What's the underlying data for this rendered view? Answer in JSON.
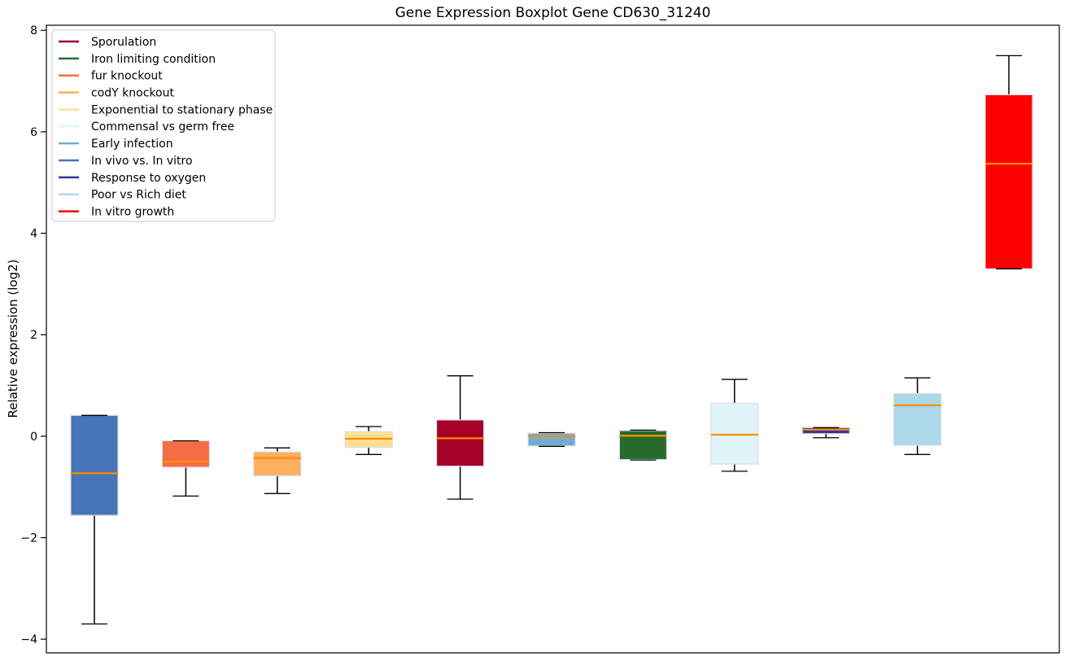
{
  "chart_data": {
    "type": "boxplot",
    "title": "Gene Expression Boxplot Gene CD630_31240",
    "ylabel": "Relative expression (log2)",
    "xlabel": "",
    "ylim": [
      -4.27,
      8.1
    ],
    "grid": false,
    "yticks": [
      {
        "label": "8",
        "value": 8
      },
      {
        "label": "6",
        "value": 6
      },
      {
        "label": "4",
        "value": 4
      },
      {
        "label": "2",
        "value": 2
      },
      {
        "label": "0",
        "value": 0
      },
      {
        "label": "−2",
        "value": -2
      },
      {
        "label": "−4",
        "value": -4
      }
    ],
    "colors": {
      "median": "#ff8c00",
      "whisker": "#000000",
      "box_edge": "#dcdce6",
      "spine": "#000000",
      "legend_border": "#cccccc",
      "legend_background": "#ffffff"
    },
    "legend_position": "upper-left",
    "legend": [
      {
        "label": "Sporulation",
        "color": "#a50026"
      },
      {
        "label": "Iron limiting condition",
        "color": "#266b2a"
      },
      {
        "label": "fur knockout",
        "color": "#f46d43"
      },
      {
        "label": "codY knockout",
        "color": "#fdae61"
      },
      {
        "label": "Exponential to stationary phase",
        "color": "#fee090"
      },
      {
        "label": "Commensal vs germ free",
        "color": "#e0f3f8"
      },
      {
        "label": "Early infection",
        "color": "#74add1"
      },
      {
        "label": "In vivo vs. In vitro",
        "color": "#4575b4"
      },
      {
        "label": "Response to oxygen",
        "color": "#313695"
      },
      {
        "label": "Poor vs Rich diet",
        "color": "#abd9e9"
      },
      {
        "label": "In vitro growth",
        "color": "#ff0000"
      }
    ],
    "boxes": [
      {
        "label": "In vivo vs. In vitro",
        "color": "#4575b4",
        "whislo": -3.7,
        "q1": -1.56,
        "med": -0.73,
        "q3": 0.41,
        "whishi": 0.41
      },
      {
        "label": "fur knockout",
        "color": "#f46d43",
        "whislo": -1.18,
        "q1": -0.61,
        "med": -0.5,
        "q3": -0.09,
        "whishi": -0.09
      },
      {
        "label": "codY knockout",
        "color": "#fdae61",
        "whislo": -1.13,
        "q1": -0.78,
        "med": -0.43,
        "q3": -0.31,
        "whishi": -0.23
      },
      {
        "label": "Exponential to stationary phase",
        "color": "#fee090",
        "whislo": -0.36,
        "q1": -0.22,
        "med": -0.05,
        "q3": 0.09,
        "whishi": 0.19
      },
      {
        "label": "Sporulation",
        "color": "#a50026",
        "whislo": -1.24,
        "q1": -0.59,
        "med": -0.04,
        "q3": 0.32,
        "whishi": 1.19
      },
      {
        "label": "Early infection",
        "color": "#74add1",
        "whislo": -0.2,
        "q1": -0.19,
        "med": 0.0,
        "q3": 0.06,
        "whishi": 0.07
      },
      {
        "label": "Iron limiting condition",
        "color": "#266b2a",
        "whislo": -0.47,
        "q1": -0.46,
        "med": 0.01,
        "q3": 0.11,
        "whishi": 0.12
      },
      {
        "label": "Commensal vs germ free",
        "color": "#e0f3f8",
        "whislo": -0.69,
        "q1": -0.55,
        "med": 0.03,
        "q3": 0.65,
        "whishi": 1.12
      },
      {
        "label": "Response to oxygen",
        "color": "#313695",
        "whislo": -0.03,
        "q1": 0.05,
        "med": 0.13,
        "q3": 0.17,
        "whishi": 0.17
      },
      {
        "label": "Poor vs Rich diet",
        "color": "#abd9e9",
        "whislo": -0.36,
        "q1": -0.18,
        "med": 0.61,
        "q3": 0.84,
        "whishi": 1.15
      },
      {
        "label": "In vitro growth",
        "color": "#ff0000",
        "whislo": 3.3,
        "q1": 3.3,
        "med": 5.37,
        "q3": 6.73,
        "whishi": 7.5
      }
    ]
  }
}
